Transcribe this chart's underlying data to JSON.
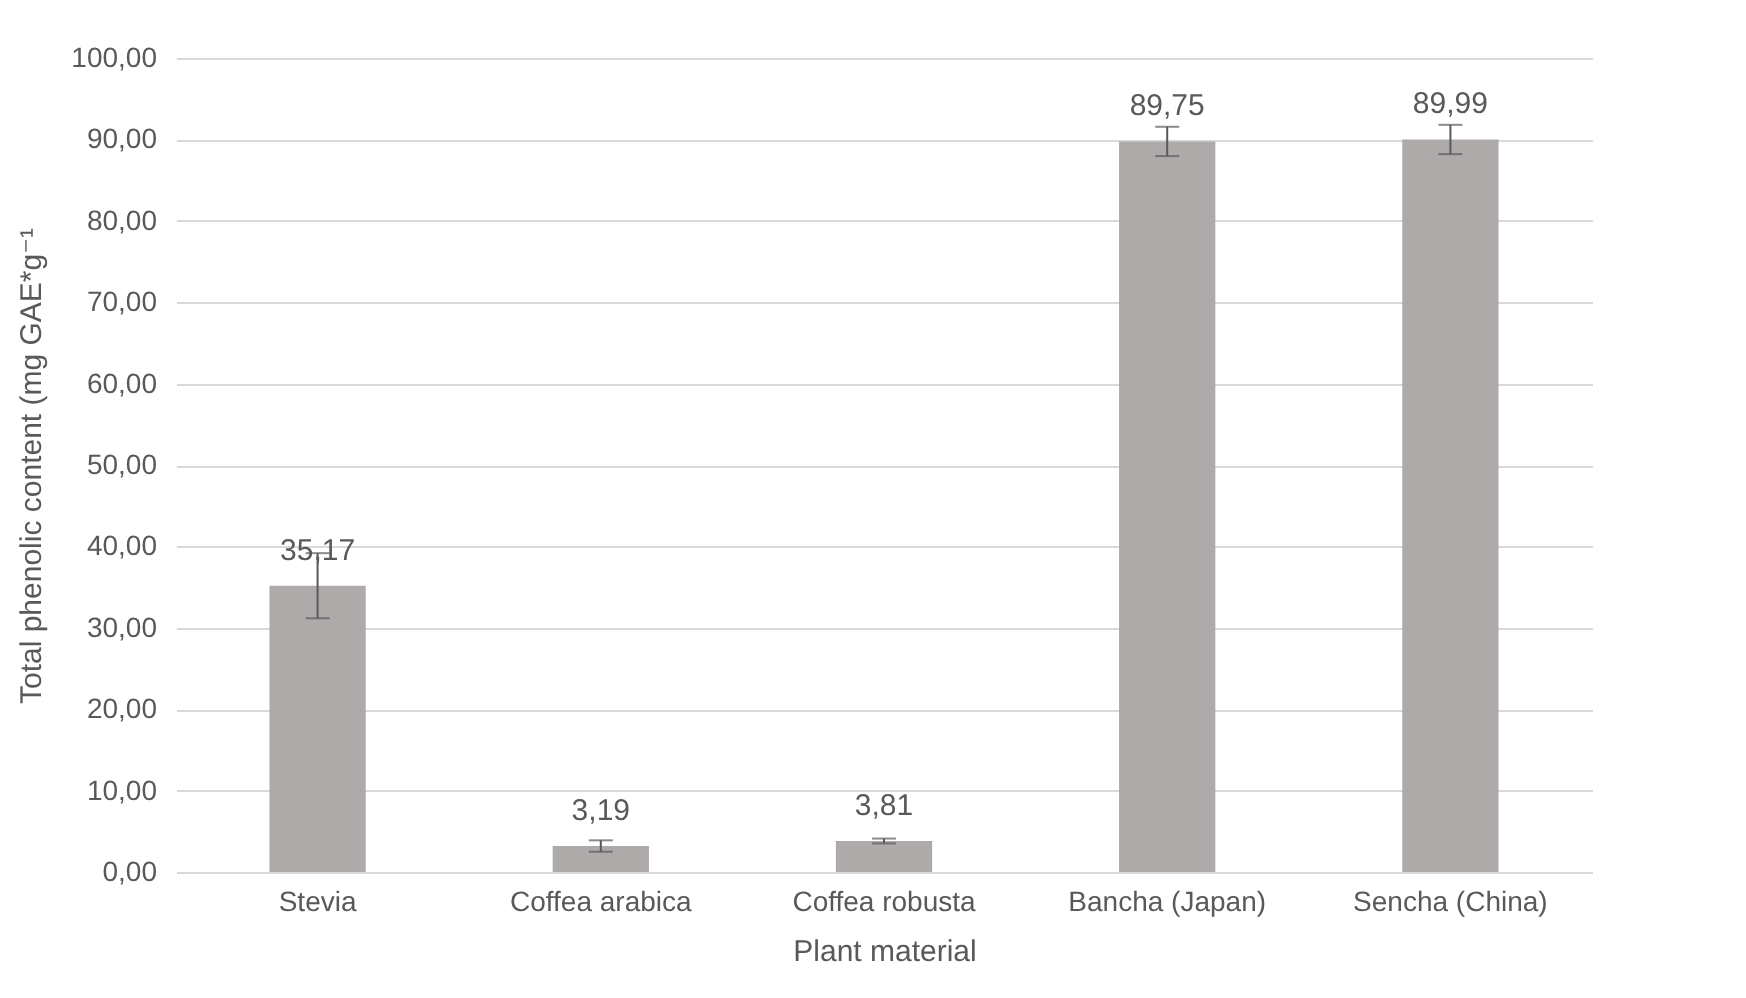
{
  "chart_data": {
    "type": "bar",
    "xlabel": "Plant material",
    "ylabel": "Total phenolic content (mg GAE*g⁻¹",
    "categories": [
      "Stevia",
      "Coffea arabica",
      "Coffea robusta",
      "Bancha (Japan)",
      "Sencha (China)"
    ],
    "values": [
      35.17,
      3.19,
      3.81,
      89.75,
      89.99
    ],
    "errors": [
      4.0,
      0.7,
      0.3,
      1.8,
      1.8
    ],
    "value_labels": [
      "35,17",
      "3,19",
      "3,81",
      "89,75",
      "89,99"
    ],
    "color": "#aeaaaa",
    "ylim": [
      0,
      100
    ],
    "yticks": [
      {
        "value": 0,
        "label": "0,00"
      },
      {
        "value": 10,
        "label": "10,00"
      },
      {
        "value": 20,
        "label": "20,00"
      },
      {
        "value": 30,
        "label": "30,00"
      },
      {
        "value": 40,
        "label": "40,00"
      },
      {
        "value": 50,
        "label": "50,00"
      },
      {
        "value": 60,
        "label": "60,00"
      },
      {
        "value": 70,
        "label": "70,00"
      },
      {
        "value": 80,
        "label": "80,00"
      },
      {
        "value": 90,
        "label": "90,00"
      },
      {
        "value": 100,
        "label": "100,00"
      }
    ],
    "grid": "y"
  }
}
